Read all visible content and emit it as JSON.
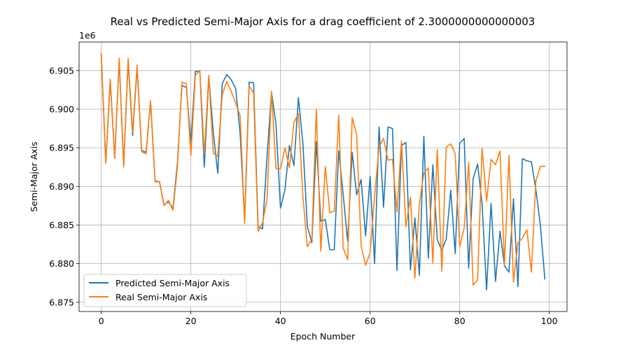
{
  "chart_data": {
    "type": "line",
    "title": "Real vs Predicted Semi-Major Axis for a drag coefficient of 2.3000000000000003",
    "xlabel": "Epoch Number",
    "ylabel": "Semi-Major Axis",
    "y_offset_label": "1e6",
    "xlim": [
      -4.95,
      103.95
    ],
    "ylim": [
      6.8738,
      6.9087
    ],
    "xticks": [
      0,
      20,
      40,
      60,
      80,
      100
    ],
    "yticks": [
      6.875,
      6.88,
      6.885,
      6.89,
      6.895,
      6.9,
      6.905
    ],
    "xtick_labels": [
      "0",
      "20",
      "40",
      "60",
      "80",
      "100"
    ],
    "ytick_labels": [
      "6.875",
      "6.880",
      "6.885",
      "6.890",
      "6.895",
      "6.900",
      "6.905"
    ],
    "grid": true,
    "legend_position": "lower-left",
    "x": [
      0,
      1,
      2,
      3,
      4,
      5,
      6,
      7,
      8,
      9,
      10,
      11,
      12,
      13,
      14,
      15,
      16,
      17,
      18,
      19,
      20,
      21,
      22,
      23,
      24,
      25,
      26,
      27,
      28,
      29,
      30,
      31,
      32,
      33,
      34,
      35,
      36,
      37,
      38,
      39,
      40,
      41,
      42,
      43,
      44,
      45,
      46,
      47,
      48,
      49,
      50,
      51,
      52,
      53,
      54,
      55,
      56,
      57,
      58,
      59,
      60,
      61,
      62,
      63,
      64,
      65,
      66,
      67,
      68,
      69,
      70,
      71,
      72,
      73,
      74,
      75,
      76,
      77,
      78,
      79,
      80,
      81,
      82,
      83,
      84,
      85,
      86,
      87,
      88,
      89,
      90,
      91,
      92,
      93,
      94,
      95,
      96,
      97,
      98,
      99
    ],
    "series": [
      {
        "name": "Predicted Semi-Major Axis",
        "color": "#1f77b4",
        "values": [
          6.9072,
          6.893,
          6.9037,
          6.8937,
          6.9063,
          6.8927,
          6.9062,
          6.8966,
          6.9054,
          6.8947,
          6.8944,
          6.901,
          6.8907,
          6.8906,
          6.8876,
          6.888,
          6.8872,
          6.893,
          6.9031,
          6.9028,
          6.8957,
          6.9049,
          6.9049,
          6.8925,
          6.9042,
          6.897,
          6.8917,
          6.9033,
          6.9045,
          6.9038,
          6.9027,
          6.8968,
          6.8856,
          6.9035,
          6.9034,
          6.8848,
          6.8845,
          6.8939,
          6.9022,
          6.898,
          6.8872,
          6.8896,
          6.8953,
          6.8927,
          6.9015,
          6.8956,
          6.8848,
          6.8827,
          6.8958,
          6.8855,
          6.8857,
          6.8818,
          6.8818,
          6.8946,
          6.8889,
          6.8829,
          6.8944,
          6.8889,
          6.8909,
          6.8836,
          6.8913,
          6.88,
          6.8977,
          6.8873,
          6.8977,
          6.8975,
          6.8791,
          6.8953,
          6.8957,
          6.8792,
          6.8859,
          6.8785,
          6.8965,
          6.8807,
          6.8928,
          6.8831,
          6.8817,
          6.8832,
          6.8895,
          6.8813,
          6.8956,
          6.8962,
          6.8794,
          6.891,
          6.8929,
          6.8877,
          6.8766,
          6.8878,
          6.8777,
          6.8842,
          6.8797,
          6.8789,
          6.8884,
          6.877,
          6.8936,
          6.8933,
          6.8932,
          6.8896,
          6.885,
          6.878
        ]
      },
      {
        "name": "Real Semi-Major Axis",
        "color": "#ff7f0e",
        "values": [
          6.9072,
          6.893,
          6.9039,
          6.8936,
          6.9066,
          6.8925,
          6.9066,
          6.897,
          6.9057,
          6.8945,
          6.8942,
          6.9011,
          6.8906,
          6.8906,
          6.8875,
          6.8882,
          6.8869,
          6.8925,
          6.9035,
          6.9033,
          6.894,
          6.9044,
          6.905,
          6.8942,
          6.9044,
          6.8943,
          6.8939,
          6.9019,
          6.9036,
          6.9023,
          6.9008,
          6.8991,
          6.8852,
          6.903,
          6.9021,
          6.8842,
          6.8853,
          6.8883,
          6.9023,
          6.8923,
          6.8923,
          6.895,
          6.8924,
          6.8983,
          6.8994,
          6.8887,
          6.8822,
          6.8832,
          6.9,
          6.8816,
          6.8926,
          6.8866,
          6.8868,
          6.8992,
          6.882,
          6.8805,
          6.8989,
          6.8967,
          6.8823,
          6.8798,
          6.8814,
          6.8887,
          6.8951,
          6.8962,
          6.8934,
          6.8935,
          6.8867,
          6.8959,
          6.8848,
          6.8886,
          6.8781,
          6.8877,
          6.8917,
          6.8924,
          6.8801,
          6.8948,
          6.879,
          6.8951,
          6.8955,
          6.8942,
          6.8822,
          6.8846,
          6.8931,
          6.8772,
          6.8779,
          6.8949,
          6.8881,
          6.8935,
          6.8928,
          6.8946,
          6.8798,
          6.894,
          6.8776,
          6.8827,
          6.8833,
          6.8844,
          6.8789,
          6.8907,
          6.8926,
          6.8926
        ]
      }
    ]
  }
}
